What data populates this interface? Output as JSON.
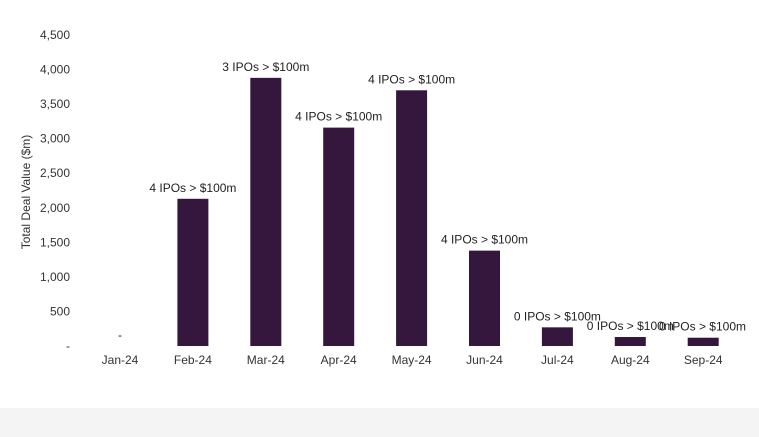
{
  "chart_data": {
    "type": "bar",
    "categories": [
      "Jan-24",
      "Feb-24",
      "Mar-24",
      "Apr-24",
      "May-24",
      "Jun-24",
      "Jul-24",
      "Aug-24",
      "Sep-24"
    ],
    "values": [
      0,
      2130,
      3880,
      3160,
      3700,
      1380,
      270,
      130,
      120
    ],
    "data_labels": [
      "-",
      "4 IPOs > $100m",
      "3 IPOs > $100m",
      "4 IPOs > $100m",
      "4 IPOs > $100m",
      "4 IPOs > $100m",
      "0 IPOs > $100m",
      "0 IPOs > $100m",
      "0 IPOs > $100m"
    ],
    "ylabel": "Total Deal Value ($m)",
    "ylim": [
      0,
      4500
    ],
    "yticks": [
      0,
      500,
      1000,
      1500,
      2000,
      2500,
      3000,
      3500,
      4000,
      4500
    ],
    "ytick_labels": [
      "-",
      "500",
      "1,000",
      "1,500",
      "2,000",
      "2,500",
      "3,000",
      "3,500",
      "4,000",
      "4,500"
    ],
    "bar_color": "#35163c",
    "grid": false
  }
}
